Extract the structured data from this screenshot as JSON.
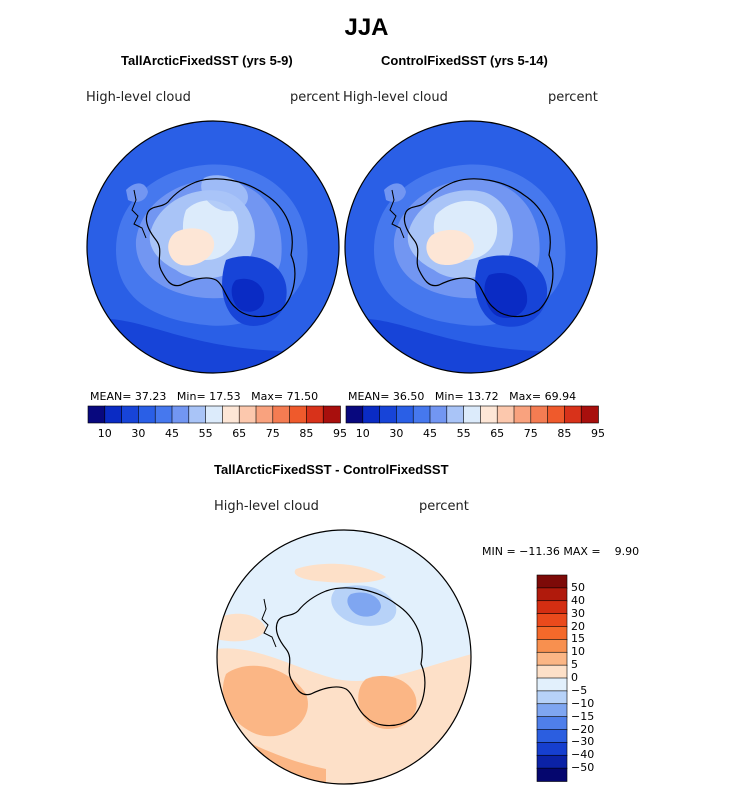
{
  "chart_data": [
    {
      "type": "heatmap",
      "title": "TallArcticFixedSST (yrs 5-9)",
      "variable": "High-level cloud",
      "units": "percent",
      "mean_label": "MEAN=",
      "mean": "37.23",
      "min_label": "Min=",
      "min": "17.53",
      "max_label": "Max=",
      "max": "71.50",
      "colorbar_ticks": [
        "10",
        "30",
        "45",
        "55",
        "65",
        "75",
        "85",
        "95"
      ],
      "colors": [
        "#08087e",
        "#0a2bc4",
        "#1744d8",
        "#2a5fe6",
        "#4678ee",
        "#7296f2",
        "#a9c4f7",
        "#dcebfb",
        "#fde6d6",
        "#fcc8ad",
        "#f9a27e",
        "#f47c52",
        "#ef5a2c",
        "#d8321a",
        "#a80f0d"
      ]
    },
    {
      "type": "heatmap",
      "title": "ControlFixedSST (yrs 5-14)",
      "variable": "High-level cloud",
      "units": "percent",
      "mean_label": "MEAN=",
      "mean": "36.50",
      "min_label": "Min=",
      "min": "13.72",
      "max_label": "Max=",
      "max": "69.94",
      "colorbar_ticks": [
        "10",
        "30",
        "45",
        "55",
        "65",
        "75",
        "85",
        "95"
      ],
      "colors": [
        "#08087e",
        "#0a2bc4",
        "#1744d8",
        "#2a5fe6",
        "#4678ee",
        "#7296f2",
        "#a9c4f7",
        "#dcebfb",
        "#fde6d6",
        "#fcc8ad",
        "#f9a27e",
        "#f47c52",
        "#ef5a2c",
        "#d8321a",
        "#a80f0d"
      ]
    },
    {
      "type": "heatmap",
      "title": "TallArcticFixedSST - ControlFixedSST",
      "variable": "High-level cloud",
      "units": "percent",
      "minmax_text": "MIN = −11.36 MAX =    9.90",
      "colorbar_ticks": [
        "50",
        "40",
        "30",
        "20",
        "15",
        "10",
        "5",
        "0",
        "−5",
        "−10",
        "−15",
        "−20",
        "−30",
        "−40",
        "−50"
      ],
      "colors": [
        "#7d0a08",
        "#b01a0c",
        "#d42e12",
        "#ea4a1c",
        "#f4692a",
        "#f8904f",
        "#fbb685",
        "#fde0c8",
        "#e2f0fc",
        "#b7d2f8",
        "#7fa6f1",
        "#4f7fea",
        "#2b5ee0",
        "#163fcf",
        "#0b22a6",
        "#05066e"
      ]
    }
  ],
  "figure_title": "JJA"
}
